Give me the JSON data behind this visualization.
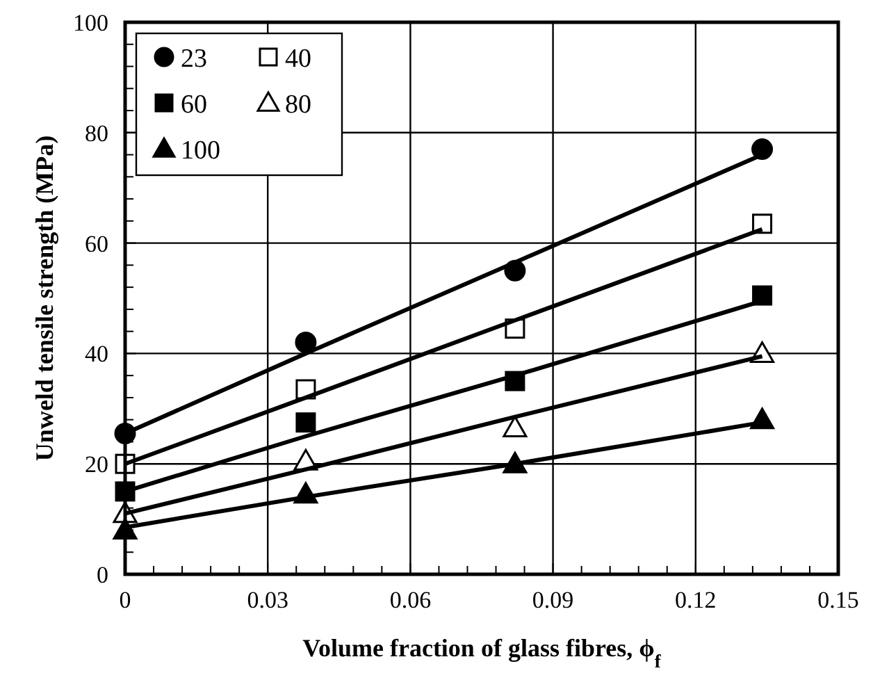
{
  "chart_data": {
    "type": "scatter",
    "xlabel": "Volume fraction of glass fibres, ϕ$_{f}$",
    "ylabel": "Unweld tensile strength (MPa)",
    "xlim": [
      0,
      0.15
    ],
    "ylim": [
      0,
      100
    ],
    "xticks": [
      0,
      {
        "value": 0.006,
        "label": null
      },
      {
        "value": 0.012,
        "label": null
      },
      {
        "value": 0.018,
        "label": null
      },
      {
        "value": 0.024,
        "label": null
      },
      0.03,
      {
        "value": 0.036,
        "label": null
      },
      {
        "value": 0.042,
        "label": null
      },
      {
        "value": 0.048,
        "label": null
      },
      {
        "value": 0.054,
        "label": null
      },
      0.06,
      {
        "value": 0.066,
        "label": null
      },
      {
        "value": 0.072,
        "label": null
      },
      {
        "value": 0.078,
        "label": null
      },
      {
        "value": 0.084,
        "label": null
      },
      0.09,
      {
        "value": 0.096,
        "label": null
      },
      {
        "value": 0.102,
        "label": null
      },
      {
        "value": 0.108,
        "label": null
      },
      {
        "value": 0.114,
        "label": null
      },
      0.12,
      {
        "value": 0.126,
        "label": null
      },
      {
        "value": 0.132,
        "label": null
      },
      {
        "value": 0.138,
        "label": null
      },
      {
        "value": 0.144,
        "label": null
      },
      0.15
    ],
    "yticks": [
      0,
      {
        "value": 4,
        "label": null
      },
      {
        "value": 8,
        "label": null
      },
      {
        "value": 12,
        "label": null
      },
      {
        "value": 16,
        "label": null
      },
      20,
      {
        "value": 24,
        "label": null
      },
      {
        "value": 28,
        "label": null
      },
      {
        "value": 32,
        "label": null
      },
      {
        "value": 36,
        "label": null
      },
      40,
      {
        "value": 44,
        "label": null
      },
      {
        "value": 48,
        "label": null
      },
      {
        "value": 52,
        "label": null
      },
      {
        "value": 56,
        "label": null
      },
      60,
      {
        "value": 64,
        "label": null
      },
      {
        "value": 68,
        "label": null
      },
      {
        "value": 72,
        "label": null
      },
      {
        "value": 76,
        "label": null
      },
      80,
      {
        "value": 84,
        "label": null
      },
      {
        "value": 88,
        "label": null
      },
      {
        "value": 92,
        "label": null
      },
      {
        "value": 96,
        "label": null
      },
      100
    ],
    "grid": true,
    "legend": "top left",
    "x": [
      0,
      0.038,
      0.082,
      0.134
    ],
    "series": [
      {
        "name": "23",
        "color": "#000000",
        "marker": "circle",
        "values": [
          25.5,
          42,
          55,
          77
        ]
      },
      {
        "name": "40",
        "color": "#ffffff",
        "marker": "square",
        "values": [
          20,
          33.5,
          44.5,
          63.5
        ]
      },
      {
        "name": "60",
        "color": "#000000",
        "marker": "square",
        "values": [
          15,
          27.5,
          35,
          50.5
        ]
      },
      {
        "name": "80",
        "color": "#ffffff",
        "marker": "triangle",
        "values": [
          11,
          20.5,
          26.5,
          40
        ]
      },
      {
        "name": "100",
        "color": "#000000",
        "marker": "triangle",
        "values": [
          8,
          14.5,
          20,
          28
        ]
      },
      {
        "type": "line",
        "color": "#000000",
        "values": [
          25.5,
          40,
          56.5,
          76
        ]
      },
      {
        "type": "line",
        "color": "#000000",
        "values": [
          20,
          32,
          46,
          62.5
        ]
      },
      {
        "type": "line",
        "color": "#000000",
        "values": [
          15,
          25,
          36,
          49.5
        ]
      },
      {
        "type": "line",
        "color": "#000000",
        "values": [
          11,
          19,
          28.5,
          39.5
        ]
      },
      {
        "type": "line",
        "color": "#000000",
        "values": [
          8.5,
          14,
          20,
          27.5
        ]
      }
    ]
  }
}
